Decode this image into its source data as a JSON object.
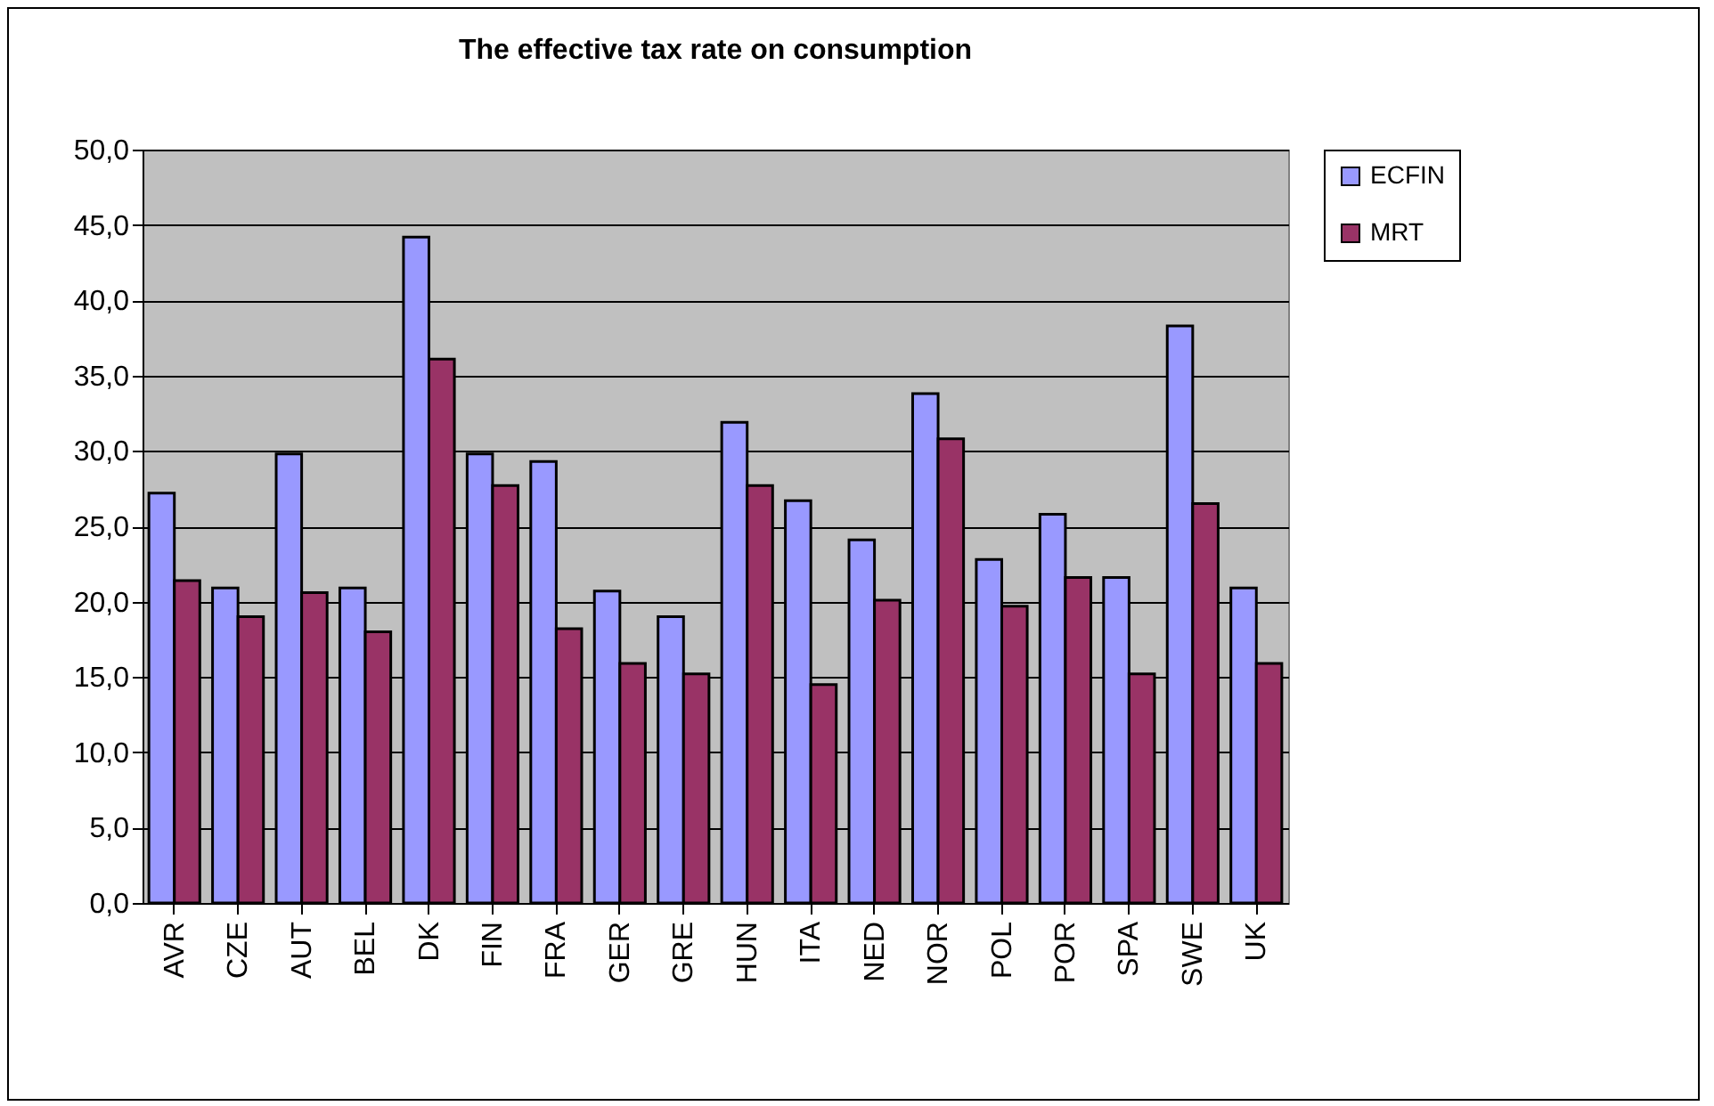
{
  "chart_data": {
    "type": "bar",
    "title": "The effective tax rate on consumption",
    "categories": [
      "AVR",
      "CZE",
      "AUT",
      "BEL",
      "DK",
      "FIN",
      "FRA",
      "GER",
      "GRE",
      "HUN",
      "ITA",
      "NED",
      "NOR",
      "POL",
      "POR",
      "SPA",
      "SWE",
      "UK"
    ],
    "series": [
      {
        "name": "ECFIN",
        "color": "#9999ff",
        "values": [
          27.2,
          20.9,
          29.8,
          20.9,
          44.2,
          29.8,
          29.3,
          20.7,
          19.0,
          31.9,
          26.7,
          24.1,
          33.8,
          22.8,
          25.8,
          21.6,
          38.3,
          20.9
        ]
      },
      {
        "name": "MRT",
        "color": "#993366",
        "values": [
          21.4,
          19.0,
          20.6,
          18.0,
          36.1,
          27.7,
          18.2,
          15.9,
          15.2,
          27.7,
          14.5,
          20.1,
          30.8,
          19.7,
          21.6,
          15.2,
          26.5,
          15.9
        ]
      }
    ],
    "ylim": [
      0,
      50
    ],
    "yticks": [
      {
        "value": 0,
        "label": "0,0"
      },
      {
        "value": 5,
        "label": "5,0"
      },
      {
        "value": 10,
        "label": "10,0"
      },
      {
        "value": 15,
        "label": "15,0"
      },
      {
        "value": 20,
        "label": "20,0"
      },
      {
        "value": 25,
        "label": "25,0"
      },
      {
        "value": 30,
        "label": "30,0"
      },
      {
        "value": 35,
        "label": "35,0"
      },
      {
        "value": 40,
        "label": "40,0"
      },
      {
        "value": 45,
        "label": "45,0"
      },
      {
        "value": 50,
        "label": "50,0"
      }
    ],
    "grid": "y",
    "legend": "right"
  }
}
